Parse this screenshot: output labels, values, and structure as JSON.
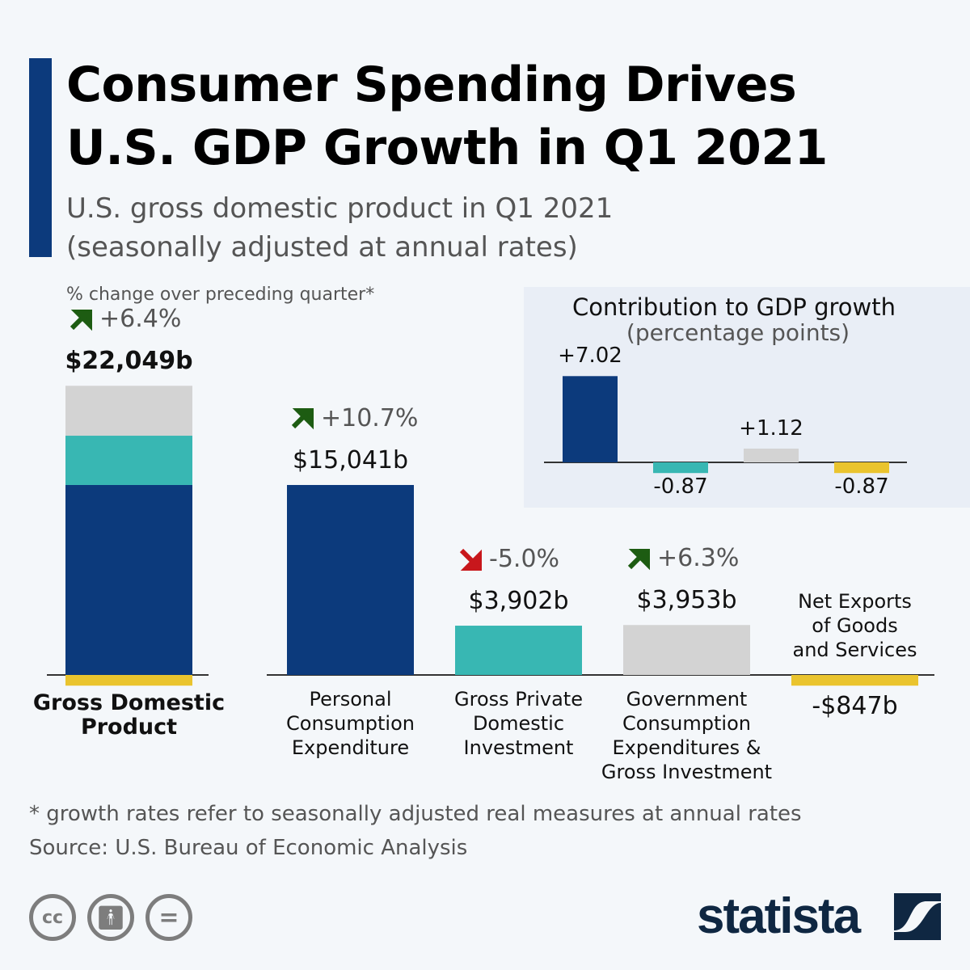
{
  "title_lines": [
    "Consumer Spending Drives",
    "U.S. GDP Growth in Q1 2021"
  ],
  "subtitle_lines": [
    "U.S. gross domestic product in Q1 2021",
    "(seasonally adjusted at annual rates)"
  ],
  "pct_note": "% change over preceding quarter*",
  "colors": {
    "pce": "#0c3a7c",
    "gpdi": "#38b7b3",
    "gov": "#d3d3d3",
    "netx": "#eac42e",
    "up": "#1d5c12",
    "down": "#c8171c"
  },
  "chart_data": [
    {
      "type": "bar",
      "title": "",
      "unit": "billion USD",
      "categories": [
        "Gross Domestic Product",
        "Personal Consumption Expenditure",
        "Gross Private Domestic Investment",
        "Government Consumption Expenditures & Gross Investment",
        "Net Exports of Goods and Services"
      ],
      "value_labels": [
        "$22,049b",
        "$15,041b",
        "$3,902b",
        "$3,953b",
        "-$847b"
      ],
      "values": [
        22049,
        15041,
        3902,
        3953,
        -847
      ],
      "change_labels": [
        "+6.4%",
        "+10.7%",
        "-5.0%",
        "+6.3%",
        ""
      ],
      "change_direction": [
        "up",
        "up",
        "down",
        "up",
        ""
      ],
      "gdp_stack_components": [
        "Personal Consumption Expenditure",
        "Gross Private Domestic Investment",
        "Government Consumption Expenditures & Gross Investment",
        "Net Exports of Goods and Services"
      ]
    },
    {
      "type": "bar",
      "title": "Contribution to GDP growth",
      "subtitle": "(percentage points)",
      "categories": [
        "Personal Consumption Expenditure",
        "Gross Private Domestic Investment",
        "Government Consumption Expenditures & Gross Investment",
        "Net Exports of Goods and Services"
      ],
      "values": [
        7.02,
        -0.87,
        1.12,
        -0.87
      ],
      "value_labels": [
        "+7.02",
        "-0.87",
        "+1.12",
        "-0.87"
      ]
    }
  ],
  "labels": {
    "gdp": [
      "Gross Domestic",
      "Product"
    ],
    "pce": [
      "Personal",
      "Consumption",
      "Expenditure"
    ],
    "gpdi": [
      "Gross Private",
      "Domestic",
      "Investment"
    ],
    "gov": [
      "Government",
      "Consumption",
      "Expenditures &",
      "Gross Investment"
    ],
    "netx": [
      "Net Exports",
      "of Goods",
      "and Services"
    ]
  },
  "footnote": "* growth rates refer to seasonally adjusted real measures at annual rates",
  "source": "Source: U.S. Bureau of Economic Analysis",
  "license_icons": [
    "cc-icon",
    "attribution-icon",
    "no-derivatives-icon"
  ],
  "logo": "statista"
}
